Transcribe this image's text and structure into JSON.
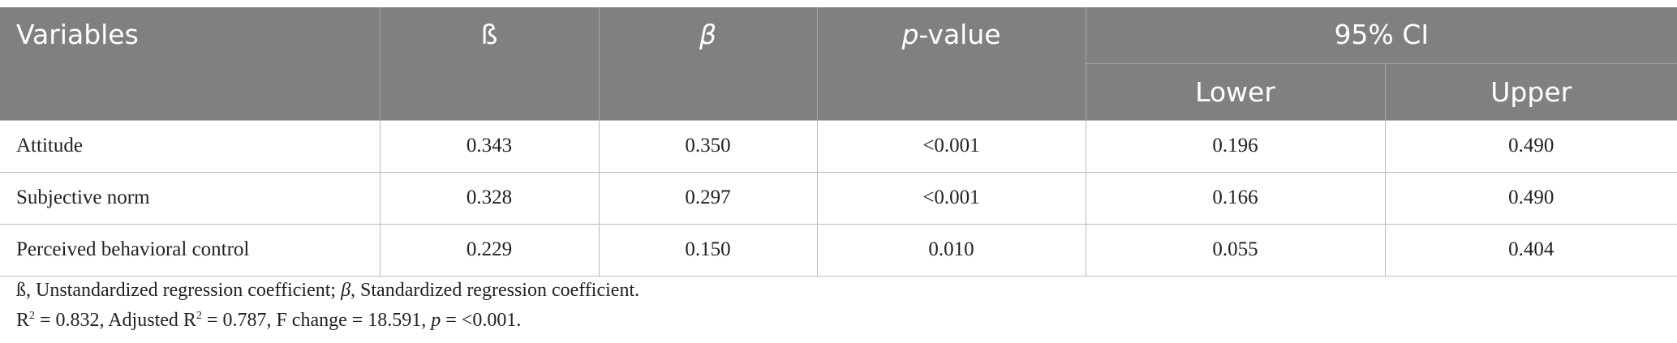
{
  "table": {
    "header": {
      "variables": "Variables",
      "b": "ß",
      "beta": "β",
      "p_value": [
        "p",
        "-value"
      ],
      "ci": "95% CI",
      "lower": "Lower",
      "upper": "Upper"
    },
    "rows": [
      [
        "Attitude",
        "0.343",
        "0.350",
        "<0.001",
        "0.196",
        "0.490"
      ],
      [
        "Subjective norm",
        "0.328",
        "0.297",
        "<0.001",
        "0.166",
        "0.490"
      ],
      [
        "Perceived behavioral control",
        "0.229",
        "0.150",
        "0.010",
        "0.055",
        "0.404"
      ]
    ]
  },
  "notes": [
    [
      "ß, Unstandardized regression coefficient; ",
      "β",
      ", Standardized regression coefficient."
    ],
    [
      "R",
      "2",
      " = 0.832, Adjusted R",
      "2",
      " = 0.787, F change = 18.591, ",
      "p",
      " = <0.001."
    ]
  ]
}
